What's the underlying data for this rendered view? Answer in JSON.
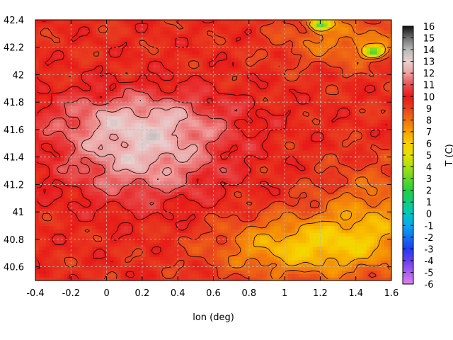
{
  "chart_data": {
    "type": "heatmap",
    "xlabel": "lon (deg)",
    "ylabel": "",
    "colorbar_label": "T (C)",
    "xlim": [
      -0.4,
      1.6
    ],
    "ylim": [
      40.5,
      42.4
    ],
    "x_ticks": [
      "-0.4",
      "-0.2",
      "0",
      "0.2",
      "0.4",
      "0.6",
      "0.8",
      "1",
      "1.2",
      "1.4",
      "1.6"
    ],
    "y_ticks": [
      "40.6",
      "40.8",
      "41",
      "41.2",
      "41.4",
      "41.6",
      "41.8",
      "42",
      "42.2",
      "42.4"
    ],
    "colorbar_range": [
      -6,
      16
    ],
    "colorbar_ticks": [
      "-6",
      "-5",
      "-4",
      "-3",
      "-2",
      "-1",
      "0",
      "1",
      "2",
      "3",
      "4",
      "5",
      "6",
      "7",
      "8",
      "9",
      "10",
      "11",
      "12",
      "13",
      "14",
      "15",
      "16"
    ],
    "grid": true,
    "contours": true,
    "field": {
      "description_values": "temperature in degrees C over lon/lat grid",
      "hot_core": {
        "lon": 0.2,
        "lat": 41.45,
        "value": 12.5
      },
      "warm_band_lat": 41.7,
      "cool_coast": {
        "lon": 1.1,
        "lat": 40.75,
        "value": 6.5
      },
      "cold_peaks": [
        {
          "lon": 1.2,
          "lat": 42.37,
          "value": 3.5
        },
        {
          "lon": 1.5,
          "lat": 42.17,
          "value": 4
        }
      ],
      "background_value": 9.5
    },
    "colormap_stops": [
      {
        "v": -6,
        "color": "#e080f0"
      },
      {
        "v": -4,
        "color": "#6a3df0"
      },
      {
        "v": -3,
        "color": "#1f3df0"
      },
      {
        "v": -1,
        "color": "#08a8f0"
      },
      {
        "v": 0,
        "color": "#00c8c0"
      },
      {
        "v": 2,
        "color": "#22d040"
      },
      {
        "v": 4,
        "color": "#a8e010"
      },
      {
        "v": 5,
        "color": "#e8e000"
      },
      {
        "v": 6,
        "color": "#f8d000"
      },
      {
        "v": 7,
        "color": "#f8a000"
      },
      {
        "v": 8,
        "color": "#f07010"
      },
      {
        "v": 9,
        "color": "#e84020"
      },
      {
        "v": 10,
        "color": "#e81818"
      },
      {
        "v": 11,
        "color": "#e85050"
      },
      {
        "v": 12,
        "color": "#f0a0a0"
      },
      {
        "v": 13,
        "color": "#e8d0d0"
      },
      {
        "v": 14,
        "color": "#b8b8b8"
      },
      {
        "v": 15,
        "color": "#707070"
      },
      {
        "v": 16,
        "color": "#101010"
      }
    ]
  }
}
